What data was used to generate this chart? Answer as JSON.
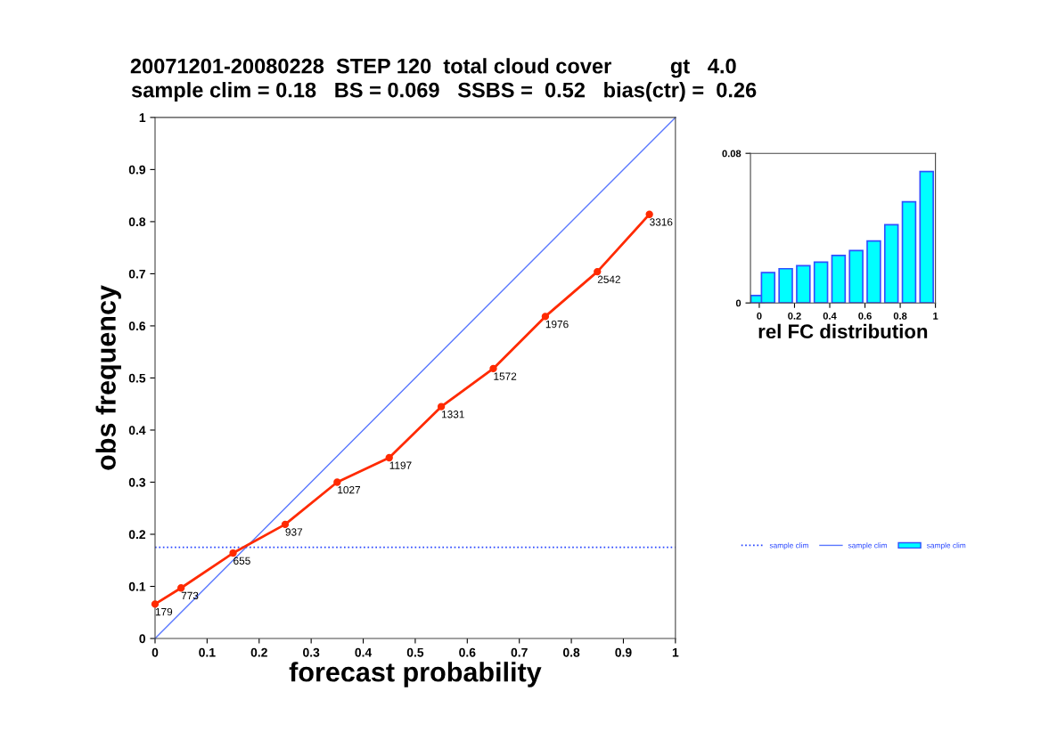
{
  "chart_data": [
    {
      "type": "line",
      "title": "20071201-20080228  STEP 120  total cloud cover          gt   4.0",
      "subtitle": "sample clim = 0.18   BS = 0.069   SSBS =  0.52   bias(ctr) =  0.26",
      "xlabel": "forecast probability",
      "ylabel": "obs frequency",
      "xlim": [
        0,
        1
      ],
      "ylim": [
        0,
        1
      ],
      "xticks": [
        0,
        0.1,
        0.2,
        0.3,
        0.4,
        0.5,
        0.6,
        0.7,
        0.8,
        0.9,
        1
      ],
      "yticks": [
        0,
        0.1,
        0.2,
        0.3,
        0.4,
        0.5,
        0.6,
        0.7,
        0.8,
        0.9,
        1
      ],
      "series": [
        {
          "color": "#ff2a00",
          "marker": "circle",
          "x": [
            0,
            0.05,
            0.15,
            0.25,
            0.35,
            0.45,
            0.55,
            0.65,
            0.75,
            0.85,
            0.95
          ],
          "values": [
            0.066,
            0.097,
            0.164,
            0.219,
            0.3,
            0.347,
            0.445,
            0.518,
            0.618,
            0.704,
            0.814
          ]
        },
        {
          "name": "sample clim",
          "color": "#5a78ff",
          "x": [
            0,
            1
          ],
          "values": [
            0,
            1
          ]
        }
      ],
      "ref_lines": [
        {
          "axis": "y",
          "value": 0.175,
          "label": "sample clim",
          "color": "#2846ff",
          "line_style": "dotted"
        }
      ],
      "annotations": [
        {
          "text": "179",
          "x": 0,
          "y": 0.066
        },
        {
          "text": "773",
          "x": 0.05,
          "y": 0.097
        },
        {
          "text": "655",
          "x": 0.15,
          "y": 0.164
        },
        {
          "text": "937",
          "x": 0.25,
          "y": 0.219
        },
        {
          "text": "1027",
          "x": 0.35,
          "y": 0.3
        },
        {
          "text": "1197",
          "x": 0.45,
          "y": 0.347
        },
        {
          "text": "1331",
          "x": 0.55,
          "y": 0.445
        },
        {
          "text": "1572",
          "x": 0.65,
          "y": 0.518
        },
        {
          "text": "1976",
          "x": 0.75,
          "y": 0.618
        },
        {
          "text": "2542",
          "x": 0.85,
          "y": 0.704
        },
        {
          "text": "3316",
          "x": 0.95,
          "y": 0.814
        }
      ],
      "grid": false,
      "legend": "right"
    },
    {
      "type": "bar",
      "xlabel": "rel FC distribution",
      "xlim": [
        -0.05,
        1
      ],
      "ylim": [
        0,
        0.08
      ],
      "xticks": [
        0,
        0.2,
        0.4,
        0.6,
        0.8,
        1
      ],
      "yticks": [
        0,
        0.08
      ],
      "series": [
        {
          "name": "sample clim",
          "color": "#00ffff",
          "x": [
            -0.01,
            0.05,
            0.15,
            0.25,
            0.35,
            0.45,
            0.55,
            0.65,
            0.75,
            0.85,
            0.95
          ],
          "values": [
            0.004,
            0.0162,
            0.0183,
            0.0199,
            0.0218,
            0.0254,
            0.028,
            0.0331,
            0.0418,
            0.0541,
            0.0703
          ]
        }
      ],
      "grid": false
    }
  ]
}
